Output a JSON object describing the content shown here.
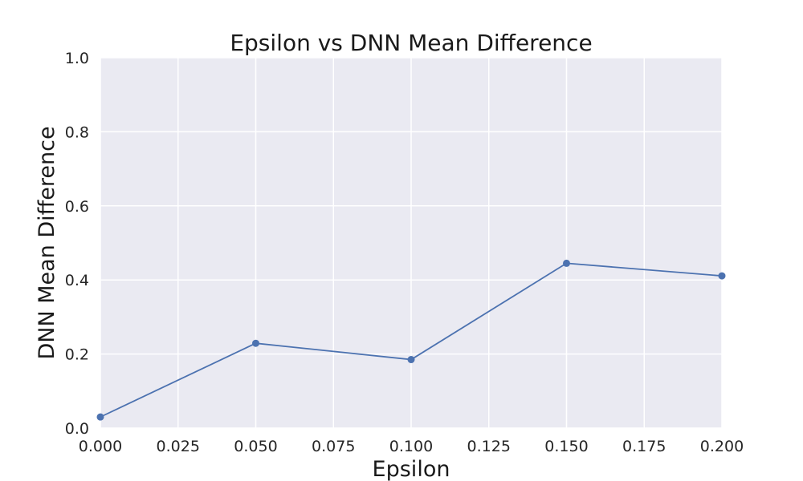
{
  "chart_data": {
    "type": "line",
    "title": "Epsilon vs DNN Mean Difference",
    "xlabel": "Epsilon",
    "ylabel": "DNN Mean Difference",
    "xlim": [
      0.0,
      0.2
    ],
    "ylim": [
      0.0,
      1.0
    ],
    "x_ticks": [
      "0.000",
      "0.025",
      "0.050",
      "0.075",
      "0.100",
      "0.125",
      "0.150",
      "0.175",
      "0.200"
    ],
    "y_ticks": [
      "0.0",
      "0.2",
      "0.4",
      "0.6",
      "0.8",
      "1.0"
    ],
    "grid": true,
    "series": [
      {
        "x": [
          0.0,
          0.05,
          0.1,
          0.15,
          0.2
        ],
        "y": [
          0.03,
          0.229,
          0.185,
          0.445,
          0.411
        ],
        "color": "#4c72b0",
        "marker": "circle"
      }
    ]
  },
  "style": {
    "plot_background": "#eaeaf2",
    "grid_color": "#ffffff",
    "line_color": "#4c72b0"
  }
}
